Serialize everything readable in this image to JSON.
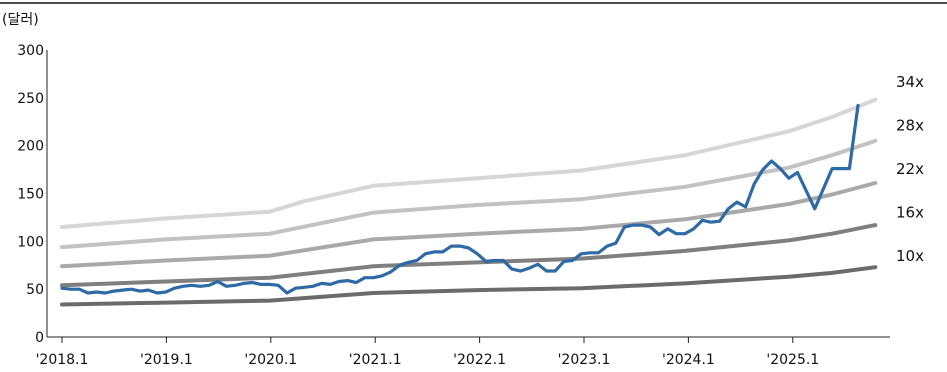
{
  "chart_data": {
    "type": "line",
    "unit_label": "(달러)",
    "ylim": [
      0,
      300
    ],
    "yticks": [
      0,
      50,
      100,
      150,
      200,
      250,
      300
    ],
    "x_tick_labels": [
      "'2018.1",
      "'2019.1",
      "'2020.1",
      "'2021.1",
      "'2022.1",
      "'2023.1",
      "'2024.1",
      "'2025.1"
    ],
    "xlim": [
      "2018-01",
      "2025-12"
    ],
    "grid": false,
    "band_colors": {
      "34x": "#d6d6d6",
      "28x": "#c2c2c2",
      "22x": "#a9a9a9",
      "16x": "#7f7f7f",
      "10x": "#6b6b6b"
    },
    "price_color": "#2e6aa5",
    "bands": [
      {
        "name": "34x",
        "points": [
          [
            "2018-01",
            115
          ],
          [
            "2019-01",
            124
          ],
          [
            "2020-01",
            131
          ],
          [
            "2020-05",
            142
          ],
          [
            "2021-01",
            158
          ],
          [
            "2022-01",
            166
          ],
          [
            "2023-01",
            174
          ],
          [
            "2024-01",
            190
          ],
          [
            "2025-01",
            215
          ],
          [
            "2025-06",
            230
          ],
          [
            "2025-11",
            248
          ]
        ]
      },
      {
        "name": "28x",
        "points": [
          [
            "2018-01",
            94
          ],
          [
            "2019-01",
            102
          ],
          [
            "2020-01",
            108
          ],
          [
            "2021-01",
            130
          ],
          [
            "2022-01",
            138
          ],
          [
            "2023-01",
            144
          ],
          [
            "2024-01",
            157
          ],
          [
            "2025-01",
            177
          ],
          [
            "2025-06",
            190
          ],
          [
            "2025-11",
            205
          ]
        ]
      },
      {
        "name": "22x",
        "points": [
          [
            "2018-01",
            74
          ],
          [
            "2019-01",
            80
          ],
          [
            "2020-01",
            85
          ],
          [
            "2021-01",
            102
          ],
          [
            "2022-01",
            108
          ],
          [
            "2023-01",
            113
          ],
          [
            "2024-01",
            123
          ],
          [
            "2025-01",
            139
          ],
          [
            "2025-06",
            149
          ],
          [
            "2025-11",
            161
          ]
        ]
      },
      {
        "name": "16x",
        "points": [
          [
            "2018-01",
            54
          ],
          [
            "2019-01",
            58
          ],
          [
            "2020-01",
            62
          ],
          [
            "2021-01",
            74
          ],
          [
            "2022-01",
            78
          ],
          [
            "2023-01",
            82
          ],
          [
            "2024-01",
            90
          ],
          [
            "2025-01",
            101
          ],
          [
            "2025-06",
            108
          ],
          [
            "2025-11",
            117
          ]
        ]
      },
      {
        "name": "10x",
        "points": [
          [
            "2018-01",
            34
          ],
          [
            "2019-01",
            36
          ],
          [
            "2020-01",
            38
          ],
          [
            "2021-01",
            46
          ],
          [
            "2022-01",
            49
          ],
          [
            "2023-01",
            51
          ],
          [
            "2024-01",
            56
          ],
          [
            "2025-01",
            63
          ],
          [
            "2025-06",
            67
          ],
          [
            "2025-11",
            73
          ]
        ]
      }
    ],
    "series": [
      {
        "points": [
          [
            "2018-01",
            51
          ],
          [
            "2018-02",
            50
          ],
          [
            "2018-03",
            50
          ],
          [
            "2018-04",
            46
          ],
          [
            "2018-05",
            47
          ],
          [
            "2018-06",
            46
          ],
          [
            "2018-07",
            48
          ],
          [
            "2018-08",
            49
          ],
          [
            "2018-09",
            50
          ],
          [
            "2018-10",
            48
          ],
          [
            "2018-11",
            49
          ],
          [
            "2018-12",
            46
          ],
          [
            "2019-01",
            47
          ],
          [
            "2019-02",
            51
          ],
          [
            "2019-03",
            53
          ],
          [
            "2019-04",
            54
          ],
          [
            "2019-05",
            53
          ],
          [
            "2019-06",
            54
          ],
          [
            "2019-07",
            58
          ],
          [
            "2019-08",
            53
          ],
          [
            "2019-09",
            54
          ],
          [
            "2019-10",
            56
          ],
          [
            "2019-11",
            57
          ],
          [
            "2019-12",
            55
          ],
          [
            "2020-01",
            55
          ],
          [
            "2020-02",
            54
          ],
          [
            "2020-03",
            46
          ],
          [
            "2020-04",
            51
          ],
          [
            "2020-05",
            52
          ],
          [
            "2020-06",
            53
          ],
          [
            "2020-07",
            56
          ],
          [
            "2020-08",
            55
          ],
          [
            "2020-09",
            58
          ],
          [
            "2020-10",
            59
          ],
          [
            "2020-11",
            57
          ],
          [
            "2020-12",
            62
          ],
          [
            "2021-01",
            62
          ],
          [
            "2021-02",
            64
          ],
          [
            "2021-03",
            68
          ],
          [
            "2021-04",
            75
          ],
          [
            "2021-05",
            78
          ],
          [
            "2021-06",
            80
          ],
          [
            "2021-07",
            87
          ],
          [
            "2021-08",
            89
          ],
          [
            "2021-09",
            89
          ],
          [
            "2021-10",
            95
          ],
          [
            "2021-11",
            95
          ],
          [
            "2021-12",
            93
          ],
          [
            "2022-01",
            87
          ],
          [
            "2022-02",
            79
          ],
          [
            "2022-03",
            80
          ],
          [
            "2022-04",
            80
          ],
          [
            "2022-05",
            71
          ],
          [
            "2022-06",
            69
          ],
          [
            "2022-07",
            72
          ],
          [
            "2022-08",
            76
          ],
          [
            "2022-09",
            69
          ],
          [
            "2022-10",
            69
          ],
          [
            "2022-11",
            79
          ],
          [
            "2022-12",
            80
          ],
          [
            "2023-01",
            87
          ],
          [
            "2023-02",
            88
          ],
          [
            "2023-03",
            88
          ],
          [
            "2023-04",
            95
          ],
          [
            "2023-05",
            98
          ],
          [
            "2023-06",
            115
          ],
          [
            "2023-07",
            117
          ],
          [
            "2023-08",
            117
          ],
          [
            "2023-09",
            115
          ],
          [
            "2023-10",
            107
          ],
          [
            "2023-11",
            113
          ],
          [
            "2023-12",
            108
          ],
          [
            "2024-01",
            108
          ],
          [
            "2024-02",
            113
          ],
          [
            "2024-03",
            122
          ],
          [
            "2024-04",
            120
          ],
          [
            "2024-05",
            121
          ],
          [
            "2024-06",
            134
          ],
          [
            "2024-07",
            141
          ],
          [
            "2024-08",
            136
          ],
          [
            "2024-09",
            160
          ],
          [
            "2024-10",
            175
          ],
          [
            "2024-11",
            184
          ],
          [
            "2024-12",
            176
          ],
          [
            "2025-01",
            166
          ],
          [
            "2025-02",
            172
          ],
          [
            "2025-03",
            153
          ],
          [
            "2025-04",
            134
          ],
          [
            "2025-05",
            155
          ],
          [
            "2025-06",
            176
          ],
          [
            "2025-07",
            176
          ],
          [
            "2025-08",
            176
          ],
          [
            "2025-09",
            242
          ]
        ]
      }
    ]
  }
}
